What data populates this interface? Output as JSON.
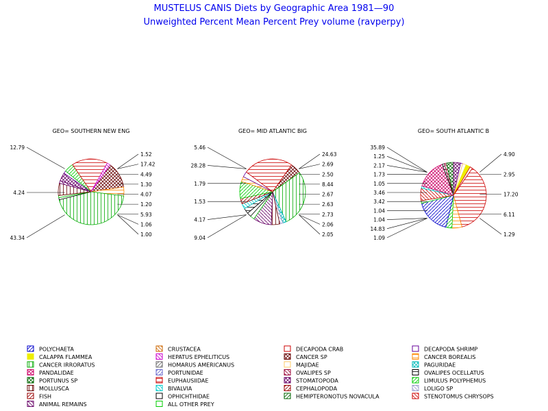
{
  "title": "MUSTELUS CANIS Diets by Geographic Area 1981—90",
  "subtitle": "Unweighted Percent Mean Percent Prey  volume (ravperpy)",
  "chart_data": [
    {
      "type": "pie",
      "title": "GEO= SOUTHERN NEW ENG",
      "slices": [
        {
          "category": "CANCER SP",
          "value": 12.79
        },
        {
          "category": "CANCER BOREALIS",
          "value": 4.24
        },
        {
          "category": "CANCER IRRORATUS",
          "value": 43.34
        },
        {
          "category": "OPHICHTHIDAE",
          "value": 1.0
        },
        {
          "category": "ALL OTHER PREY",
          "value": 1.06
        },
        {
          "category": "MOLLUSCA",
          "value": 5.93
        },
        {
          "category": "ANIMAL REMAINS",
          "value": 1.2
        },
        {
          "category": "STOMATOPODA",
          "value": 4.07
        },
        {
          "category": "DECAPODA SHRIMP",
          "value": 1.3
        },
        {
          "category": "LIMULUS POLYPHEMUS",
          "value": 4.49
        },
        {
          "category": "EUPHAUSIIDAE",
          "value": 17.42
        },
        {
          "category": "HEPATUS EPHELITICUS",
          "value": 1.52
        }
      ],
      "labels_left": [
        "12.79",
        "4.24",
        "43.34"
      ],
      "labels_right": [
        "1.52",
        "17.42",
        "4.49",
        "1.30",
        "4.07",
        "1.20",
        "5.93",
        "1.06",
        "1.00"
      ]
    },
    {
      "type": "pie",
      "title": "GEO= MID ATLANTIC BIG",
      "slices": [
        {
          "category": "CANCER SP",
          "value": 5.46
        },
        {
          "category": "CANCER IRRORATUS",
          "value": 28.28
        },
        {
          "category": "PAGURIDAE",
          "value": 1.79
        },
        {
          "category": "LOLIGO SP",
          "value": 1.53
        },
        {
          "category": "MOLLUSCA",
          "value": 4.17
        },
        {
          "category": "ANIMAL REMAINS",
          "value": 9.04
        },
        {
          "category": "ALL OTHER PREY",
          "value": 2.05
        },
        {
          "category": "OPHICHTHIDAE",
          "value": 2.06
        },
        {
          "category": "OVALIPES OCELLATUS",
          "value": 2.73
        },
        {
          "category": "BIVALVIA",
          "value": 2.63
        },
        {
          "category": "FISH",
          "value": 2.67
        },
        {
          "category": "LIMULUS POLYPHEMUS",
          "value": 8.44
        },
        {
          "category": "CANCER BOREALIS",
          "value": 2.5
        },
        {
          "category": "DECAPODA SHRIMP",
          "value": 2.69
        },
        {
          "category": "EUPHAUSIIDAE",
          "value": 24.63
        }
      ],
      "labels_left": [
        "5.46",
        "28.28",
        "1.79",
        "1.53",
        "4.17",
        "9.04"
      ],
      "labels_right": [
        "24.63",
        "2.69",
        "2.50",
        "8.44",
        "2.67",
        "2.63",
        "2.73",
        "2.06",
        "2.05"
      ]
    },
    {
      "type": "pie",
      "title": "GEO= SOUTH ATLANTIC B",
      "slices": [
        {
          "category": "EUPHAUSIIDAE",
          "value": 35.89
        },
        {
          "category": "CANCER BOREALIS",
          "value": 4.9
        },
        {
          "category": "LIMULUS POLYPHEMUS",
          "value": 2.95
        },
        {
          "category": "POLYCHAETA",
          "value": 17.2
        },
        {
          "category": "ALL OTHER PREY",
          "value": 1.29
        },
        {
          "category": "STENOTOMUS CHRYSOPS",
          "value": 6.11
        },
        {
          "category": "BIVALVIA",
          "value": 1.09
        },
        {
          "category": "PANDALIDAE",
          "value": 14.83
        },
        {
          "category": "OVALIPES OCELLATUS",
          "value": 1.04
        },
        {
          "category": "OVALIPES SP",
          "value": 1.04
        },
        {
          "category": "PORTUNUS SP",
          "value": 3.42
        },
        {
          "category": "STOMATOPODA",
          "value": 3.46
        },
        {
          "category": "DECAPODA SHRIMP",
          "value": 1.05
        },
        {
          "category": "MAJIDAE",
          "value": 1.73
        },
        {
          "category": "CALAPPA FLAMMEA",
          "value": 2.17
        },
        {
          "category": "DECAPODA CRAB",
          "value": 1.25
        }
      ],
      "labels_left": [
        "35.89",
        "1.25",
        "2.17",
        "1.73",
        "1.05",
        "3.46",
        "3.42",
        "1.04",
        "1.04",
        "14.83",
        "1.09"
      ],
      "labels_right": [
        "4.90",
        "2.95",
        "17.20",
        "6.11",
        "1.29"
      ]
    }
  ],
  "legend": [
    {
      "label": "POLYCHAETA",
      "color": "#0000cc",
      "pattern": "diag"
    },
    {
      "label": "CRUSTACEA",
      "color": "#cc6600",
      "pattern": "anti"
    },
    {
      "label": "DECAPODA CRAB",
      "color": "#cc0000",
      "pattern": "none"
    },
    {
      "label": "DECAPODA SHRIMP",
      "color": "#660099",
      "pattern": "none"
    },
    {
      "label": "CALAPPA FLAMMEA",
      "color": "#eeee00",
      "pattern": "solid"
    },
    {
      "label": "HEPATUS EPHELITICUS",
      "color": "#cc00cc",
      "pattern": "anti"
    },
    {
      "label": "CANCER SP",
      "color": "#660000",
      "pattern": "cross"
    },
    {
      "label": "CANCER BOREALIS",
      "color": "#ff8800",
      "pattern": "horiz"
    },
    {
      "label": "CANCER IRRORATUS",
      "color": "#00aa00",
      "pattern": "vert"
    },
    {
      "label": "HOMARUS AMERICANUS",
      "color": "#666666",
      "pattern": "diag"
    },
    {
      "label": "MAJIDAE",
      "color": "#ffcc66",
      "pattern": "none"
    },
    {
      "label": "PAGURIDAE",
      "color": "#00bbbb",
      "pattern": "cross"
    },
    {
      "label": "PANDALIDAE",
      "color": "#cc0066",
      "pattern": "cross"
    },
    {
      "label": "PORTUNIDAE",
      "color": "#6666cc",
      "pattern": "diag"
    },
    {
      "label": "OVALIPES SP",
      "color": "#990033",
      "pattern": "anti"
    },
    {
      "label": "OVALIPES OCELLATUS",
      "color": "#000000",
      "pattern": "horiz"
    },
    {
      "label": "PORTUNUS SP",
      "color": "#006600",
      "pattern": "cross"
    },
    {
      "label": "EUPHAUSIIDAE",
      "color": "#cc0000",
      "pattern": "horiz"
    },
    {
      "label": "STOMATOPODA",
      "color": "#660066",
      "pattern": "cross"
    },
    {
      "label": "LIMULUS POLYPHEMUS",
      "color": "#00cc00",
      "pattern": "diag"
    },
    {
      "label": "MOLLUSCA",
      "color": "#660000",
      "pattern": "vert"
    },
    {
      "label": "BIVALVIA",
      "color": "#00cccc",
      "pattern": "anti"
    },
    {
      "label": "CEPHALOPODA",
      "color": "#990000",
      "pattern": "diag"
    },
    {
      "label": "LOLIGO SP",
      "color": "#9999cc",
      "pattern": "anti"
    },
    {
      "label": "FISH",
      "color": "#990000",
      "pattern": "diag"
    },
    {
      "label": "OPHICHTHIDAE",
      "color": "#000000",
      "pattern": "none"
    },
    {
      "label": "HEMIPTERONOTUS NOVACULA",
      "color": "#006600",
      "pattern": "diag"
    },
    {
      "label": "STENOTOMUS CHRYSOPS",
      "color": "#cc0000",
      "pattern": "anti"
    },
    {
      "label": "ANIMAL REMAINS",
      "color": "#660066",
      "pattern": "anti"
    },
    {
      "label": "ALL OTHER PREY",
      "color": "#00cc00",
      "pattern": "none"
    }
  ]
}
